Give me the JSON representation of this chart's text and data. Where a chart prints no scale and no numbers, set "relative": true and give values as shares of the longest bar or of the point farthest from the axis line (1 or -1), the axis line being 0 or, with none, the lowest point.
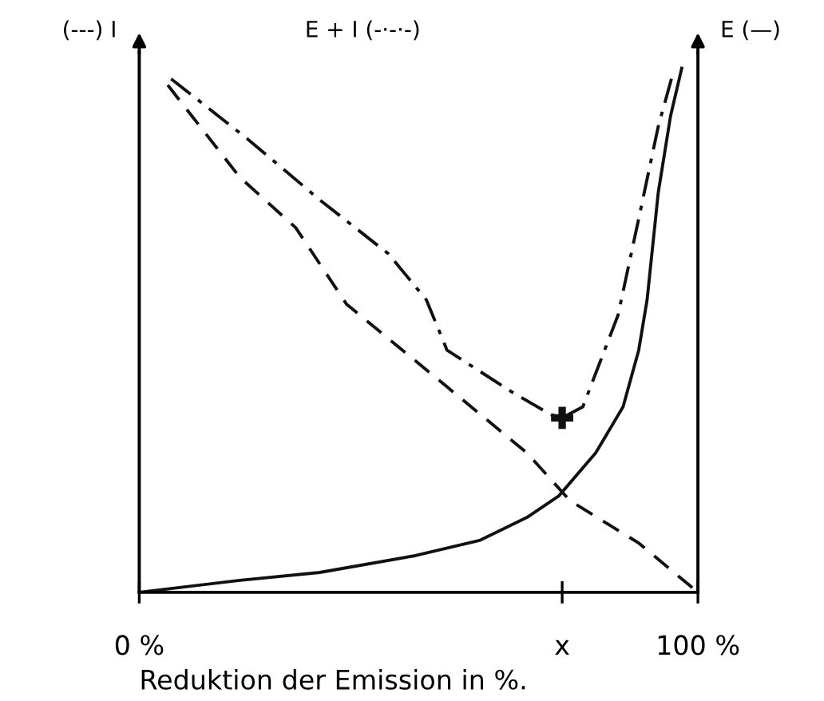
{
  "chart_data": {
    "type": "line",
    "relative": true,
    "ylabel": "(---) I",
    "y2label": "E (—)",
    "xlabel": "Reduktion der Emission in %.",
    "annotations": [
      "E + I (-·-·-)"
    ],
    "xlim": [
      0,
      100
    ],
    "xticks": [
      {
        "value": 0,
        "label": "0 %"
      },
      {
        "value": 75.7,
        "label": "x"
      },
      {
        "value": 100,
        "label": "100 %"
      }
    ],
    "tick_labels": "x",
    "grid": false,
    "legend": false,
    "series": [
      {
        "color": "#111111",
        "line_style": "dashed",
        "x": [
          5.1,
          18,
          28,
          37.1,
          55.1,
          69.4,
          77.1,
          89.4,
          100
        ],
        "values": [
          0.968,
          0.792,
          0.696,
          0.55,
          0.392,
          0.266,
          0.175,
          0.094,
          0
        ]
      },
      {
        "color": "#111111",
        "line_style": "dashdot",
        "x": [
          5.7,
          19.4,
          32.3,
          44.6,
          51.4,
          55.1,
          66.6,
          73.7,
          75.7,
          79.4,
          85.7,
          89.4,
          92.9,
          95.7
        ],
        "values": [
          0.98,
          0.865,
          0.749,
          0.646,
          0.558,
          0.462,
          0.383,
          0.339,
          0.333,
          0.354,
          0.529,
          0.713,
          0.889,
          0.997
        ]
      },
      {
        "color": "#111111",
        "line_style": "solid",
        "x": [
          0,
          18,
          32.3,
          49.4,
          60.9,
          69.4,
          75.1,
          81.7,
          86.6,
          89.4,
          90.9,
          92.9,
          95.1,
          97.1
        ],
        "values": [
          0,
          0.023,
          0.038,
          0.07,
          0.099,
          0.143,
          0.184,
          0.266,
          0.354,
          0.462,
          0.558,
          0.763,
          0.909,
          1.0
        ]
      },
      {
        "type": "scatter",
        "color": "#111111",
        "marker": "cross",
        "x": [
          75.7
        ],
        "values": [
          0.333
        ]
      }
    ]
  }
}
